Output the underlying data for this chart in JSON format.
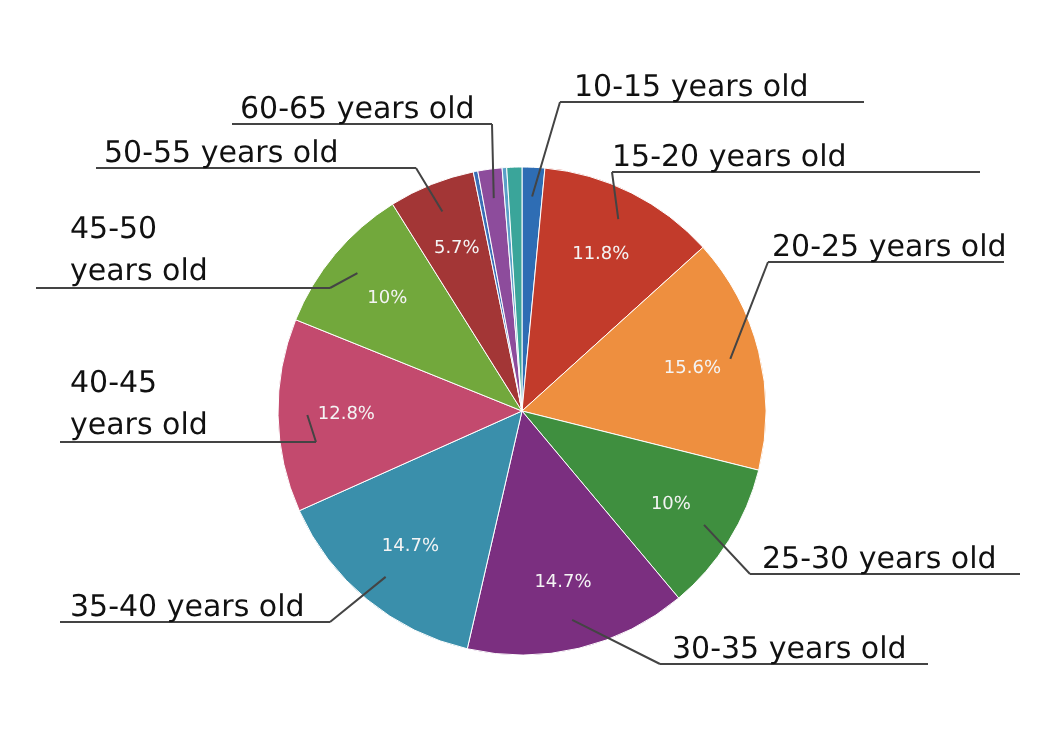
{
  "chart_data": {
    "type": "pie",
    "categories": [
      "10-15 years old",
      "15-20 years old",
      "20-25 years old",
      "25-30 years old",
      "30-35 years old",
      "35-40 years old",
      "40-45 years old",
      "45-50 years old",
      "50-55 years old",
      null,
      "60-65 years old",
      null,
      null
    ],
    "values": [
      1.5,
      11.8,
      15.6,
      10,
      14.7,
      14.7,
      12.8,
      10,
      5.7,
      0.3,
      1.6,
      0.3,
      1.0
    ],
    "colors": [
      "#2e6db4",
      "#c23b2b",
      "#ee8f3f",
      "#3f8f3f",
      "#7b2f80",
      "#3a8fab",
      "#c34a6e",
      "#72a83c",
      "#a33636",
      "#3b6fb6",
      "#8d4c9c",
      "#5aa0c8",
      "#3aa59a"
    ],
    "value_labels": [
      null,
      "11.8%",
      "15.6%",
      "10%",
      "14.7%",
      "14.7%",
      "12.8%",
      "10%",
      "5.7%",
      null,
      null,
      null,
      null
    ]
  }
}
